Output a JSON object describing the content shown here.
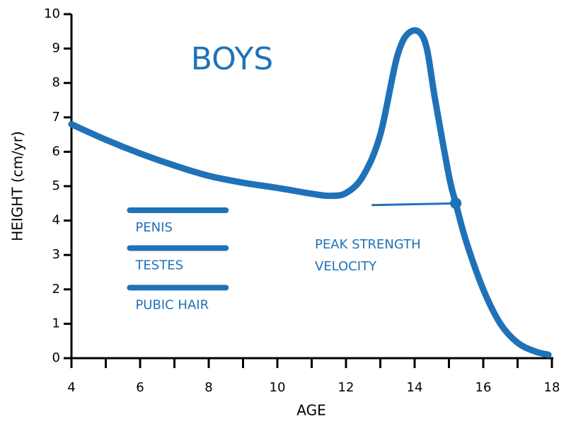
{
  "chart_data": {
    "type": "line",
    "title": "BOYS",
    "xlabel": "AGE",
    "ylabel": "HEIGHT (cm/yr)",
    "xlim": [
      4,
      18
    ],
    "xticks": [
      4,
      6,
      8,
      10,
      12,
      14,
      16,
      18
    ],
    "xminorticks": [
      5,
      7,
      9,
      11,
      13,
      15,
      17
    ],
    "ylim": [
      0,
      10
    ],
    "yticks": [
      0,
      1,
      2,
      3,
      4,
      5,
      6,
      7,
      8,
      9,
      10
    ],
    "color": "#1f72b8",
    "x": [
      4,
      5,
      6,
      7,
      8,
      9,
      10,
      11,
      11.5,
      12,
      12.5,
      13,
      13.5,
      13.9,
      14.3,
      14.6,
      15,
      15.2,
      15.5,
      16,
      16.5,
      17,
      17.5,
      17.9
    ],
    "values": [
      6.8,
      6.35,
      5.95,
      5.6,
      5.3,
      5.1,
      4.95,
      4.78,
      4.72,
      4.8,
      5.3,
      6.5,
      8.8,
      9.5,
      9.2,
      7.5,
      5.3,
      4.5,
      3.4,
      2.0,
      1.0,
      0.45,
      0.2,
      0.1
    ],
    "stages": [
      {
        "label": "PENIS",
        "x": [
          5.7,
          8.5
        ],
        "y": 4.3
      },
      {
        "label": "TESTES",
        "x": [
          5.7,
          8.5
        ],
        "y": 3.2
      },
      {
        "label": "PUBIC HAIR",
        "x": [
          5.7,
          8.5
        ],
        "y": 2.05
      }
    ],
    "annotation": {
      "lines": [
        "PEAK STRENGTH",
        "VELOCITY"
      ],
      "point": [
        15.2,
        4.5
      ],
      "from": [
        12.75,
        4.45
      ]
    }
  }
}
